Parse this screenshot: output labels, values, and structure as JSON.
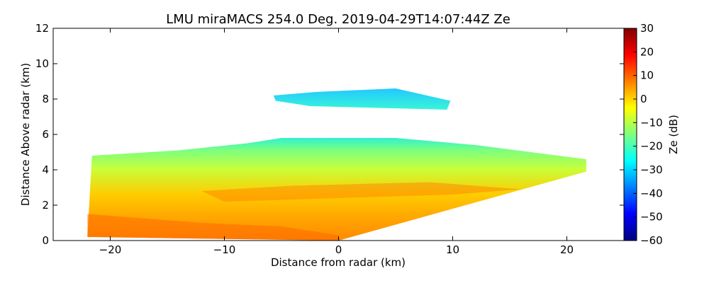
{
  "chart_data": {
    "type": "heatmap",
    "title": "LMU miraMACS 254.0 Deg. 2019-04-29T14:07:44Z  Ze",
    "xlabel": "Distance from radar (km)",
    "ylabel": "Distance Above radar  (km)",
    "xlim": [
      -25,
      25
    ],
    "ylim": [
      0,
      12
    ],
    "xticks": [
      -20,
      -10,
      0,
      10,
      20
    ],
    "xtick_labels": [
      "−20",
      "−10",
      "0",
      "10",
      "20"
    ],
    "yticks": [
      0,
      2,
      4,
      6,
      8,
      10,
      12
    ],
    "ytick_labels": [
      "0",
      "2",
      "4",
      "6",
      "8",
      "10",
      "12"
    ],
    "grid": false,
    "colorbar": {
      "label": "Ze (dB)",
      "colormap": "jet",
      "range": [
        -60,
        30
      ],
      "ticks": [
        30,
        20,
        10,
        0,
        -10,
        -20,
        -30,
        -40,
        -50,
        -60
      ],
      "tick_labels": [
        "30",
        "20",
        "10",
        "0",
        "−10",
        "−20",
        "−30",
        "−40",
        "−50",
        "−60"
      ]
    },
    "regions": [
      {
        "description_key": "main-rhi-scan-layer",
        "polygon_km": [
          [
            -22,
            0.2
          ],
          [
            -21.6,
            4.8
          ],
          [
            -14,
            5.1
          ],
          [
            -8,
            5.5
          ],
          [
            -5,
            5.8
          ],
          [
            5,
            5.8
          ],
          [
            12,
            5.4
          ],
          [
            21.7,
            4.6
          ],
          [
            21.7,
            3.9
          ],
          [
            0,
            0
          ]
        ],
        "approx_ze_dB": {
          "top": -25,
          "middle": 5,
          "bottom": 10
        }
      },
      {
        "description_key": "upper-cloud-layer",
        "polygon_km": [
          [
            -5.7,
            8.2
          ],
          [
            -2,
            8.4
          ],
          [
            5,
            8.6
          ],
          [
            9.8,
            7.9
          ],
          [
            9.5,
            7.4
          ],
          [
            -2.5,
            7.6
          ],
          [
            -5.5,
            7.9
          ]
        ],
        "approx_ze_dB": -30
      }
    ]
  }
}
